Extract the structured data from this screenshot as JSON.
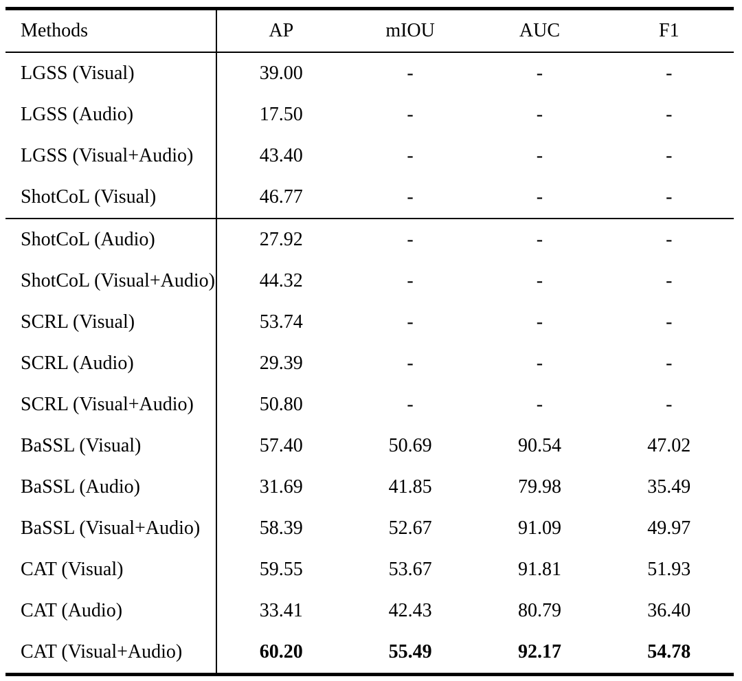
{
  "table": {
    "columns": [
      "Methods",
      "AP",
      "mIOU",
      "AUC",
      "F1"
    ],
    "rows": [
      {
        "method": "LGSS (Visual)",
        "ap": "39.00",
        "miou": "-",
        "auc": "-",
        "f1": "-",
        "bold_values": false,
        "separator_below": false
      },
      {
        "method": "LGSS (Audio)",
        "ap": "17.50",
        "miou": "-",
        "auc": "-",
        "f1": "-",
        "bold_values": false,
        "separator_below": false
      },
      {
        "method": "LGSS (Visual+Audio)",
        "ap": "43.40",
        "miou": "-",
        "auc": "-",
        "f1": "-",
        "bold_values": false,
        "separator_below": false
      },
      {
        "method": "ShotCoL (Visual)",
        "ap": "46.77",
        "miou": "-",
        "auc": "-",
        "f1": "-",
        "bold_values": false,
        "separator_below": true
      },
      {
        "method": "ShotCoL (Audio)",
        "ap": "27.92",
        "miou": "-",
        "auc": "-",
        "f1": "-",
        "bold_values": false,
        "separator_below": false
      },
      {
        "method": "ShotCoL (Visual+Audio)",
        "ap": "44.32",
        "miou": "-",
        "auc": "-",
        "f1": "-",
        "bold_values": false,
        "separator_below": false
      },
      {
        "method": "SCRL (Visual)",
        "ap": "53.74",
        "miou": "-",
        "auc": "-",
        "f1": "-",
        "bold_values": false,
        "separator_below": false
      },
      {
        "method": "SCRL (Audio)",
        "ap": "29.39",
        "miou": "-",
        "auc": "-",
        "f1": "-",
        "bold_values": false,
        "separator_below": false
      },
      {
        "method": "SCRL (Visual+Audio)",
        "ap": "50.80",
        "miou": "-",
        "auc": "-",
        "f1": "-",
        "bold_values": false,
        "separator_below": false
      },
      {
        "method": "BaSSL (Visual)",
        "ap": "57.40",
        "miou": "50.69",
        "auc": "90.54",
        "f1": "47.02",
        "bold_values": false,
        "separator_below": false
      },
      {
        "method": "BaSSL (Audio)",
        "ap": "31.69",
        "miou": "41.85",
        "auc": "79.98",
        "f1": "35.49",
        "bold_values": false,
        "separator_below": false
      },
      {
        "method": "BaSSL (Visual+Audio)",
        "ap": "58.39",
        "miou": "52.67",
        "auc": "91.09",
        "f1": "49.97",
        "bold_values": false,
        "separator_below": false
      },
      {
        "method": "CAT (Visual)",
        "ap": "59.55",
        "miou": "53.67",
        "auc": "91.81",
        "f1": "51.93",
        "bold_values": false,
        "separator_below": false
      },
      {
        "method": "CAT (Audio)",
        "ap": "33.41",
        "miou": "42.43",
        "auc": "80.79",
        "f1": "36.40",
        "bold_values": false,
        "separator_below": false
      },
      {
        "method": "CAT (Visual+Audio)",
        "ap": "60.20",
        "miou": "55.49",
        "auc": "92.17",
        "f1": "54.78",
        "bold_values": true,
        "separator_below": false
      }
    ]
  }
}
